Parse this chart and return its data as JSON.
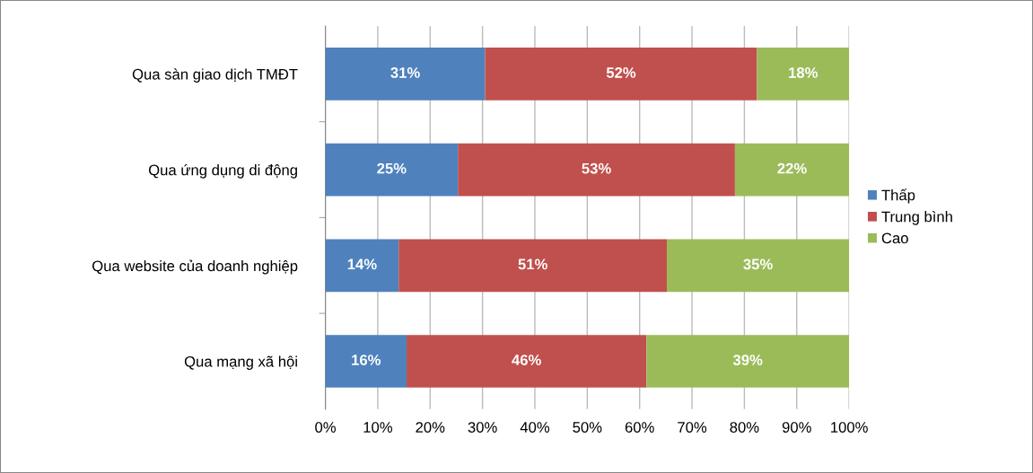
{
  "chart_data": {
    "type": "bar",
    "orientation": "horizontal",
    "stacked": true,
    "categories": [
      "Qua sàn giao dịch TMĐT",
      "Qua ứng dụng di động",
      "Qua website của doanh nghiệp",
      "Qua mạng xã hội"
    ],
    "series": [
      {
        "name": "Thấp",
        "color": "#4f81bd",
        "values": [
          30.5,
          25.3,
          14.0,
          15.5
        ],
        "value_labels": [
          "31%",
          "25%",
          "14%",
          "16%"
        ]
      },
      {
        "name": "Trung bình",
        "color": "#c0504d",
        "values": [
          51.9,
          52.9,
          51.2,
          45.8
        ],
        "value_labels": [
          "52%",
          "53%",
          "51%",
          "46%"
        ]
      },
      {
        "name": "Cao",
        "color": "#9bbb59",
        "values": [
          17.6,
          21.8,
          34.8,
          38.7
        ],
        "value_labels": [
          "18%",
          "22%",
          "35%",
          "39%"
        ]
      }
    ],
    "xlim": [
      0,
      100
    ],
    "xticks": [
      {
        "value": 0,
        "label": "0%"
      },
      {
        "value": 10,
        "label": "10%"
      },
      {
        "value": 20,
        "label": "20%"
      },
      {
        "value": 30,
        "label": "30%"
      },
      {
        "value": 40,
        "label": "40%"
      },
      {
        "value": 50,
        "label": "50%"
      },
      {
        "value": 60,
        "label": "60%"
      },
      {
        "value": 70,
        "label": "70%"
      },
      {
        "value": 80,
        "label": "80%"
      },
      {
        "value": 90,
        "label": "90%"
      },
      {
        "value": 100,
        "label": "100%"
      }
    ],
    "grid": "x",
    "legend": "right"
  }
}
